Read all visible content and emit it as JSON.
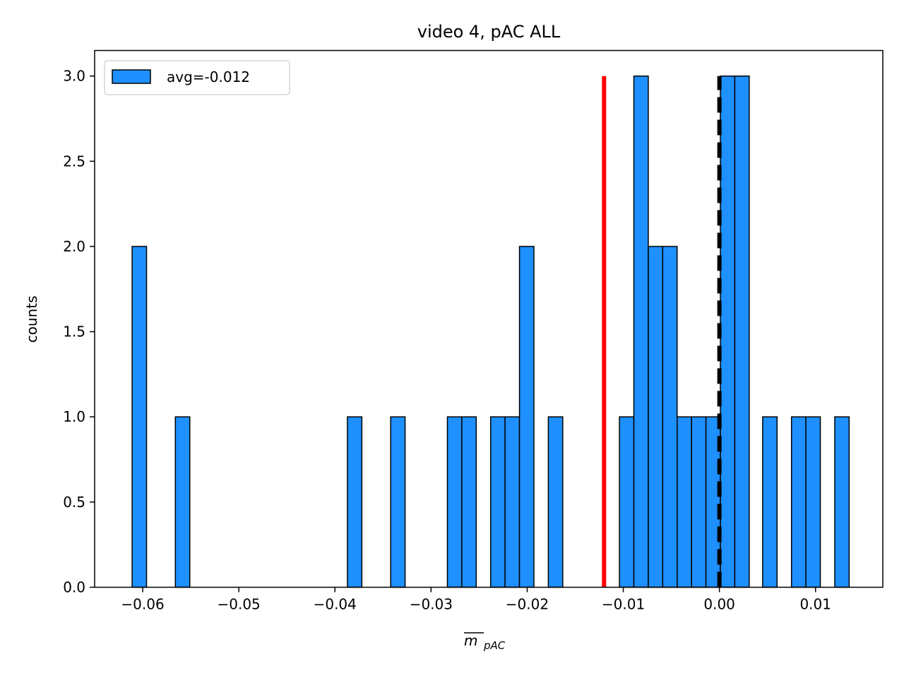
{
  "chart_data": {
    "type": "bar",
    "title": "video 4, pAC ALL",
    "xlabel_main": "m",
    "xlabel_sub": "pAC",
    "ylabel": "counts",
    "xlim": [
      -0.065,
      0.017
    ],
    "ylim": [
      0,
      3.15
    ],
    "bin_width": 0.0015,
    "xticks": [
      -0.06,
      -0.05,
      -0.04,
      -0.03,
      -0.02,
      -0.01,
      0.0,
      0.01
    ],
    "xtick_labels": [
      "−0.06",
      "−0.05",
      "−0.04",
      "−0.03",
      "−0.02",
      "−0.01",
      "0.00",
      "0.01"
    ],
    "yticks": [
      0.0,
      0.5,
      1.0,
      1.5,
      2.0,
      2.5,
      3.0
    ],
    "ytick_labels": [
      "0.0",
      "0.5",
      "1.0",
      "1.5",
      "2.0",
      "2.5",
      "3.0"
    ],
    "bins": [
      {
        "x0": -0.0611,
        "count": 2
      },
      {
        "x0": -0.0566,
        "count": 1
      },
      {
        "x0": -0.0387,
        "count": 1
      },
      {
        "x0": -0.0342,
        "count": 1
      },
      {
        "x0": -0.0283,
        "count": 1
      },
      {
        "x0": -0.0268,
        "count": 1
      },
      {
        "x0": -0.0238,
        "count": 1
      },
      {
        "x0": -0.0223,
        "count": 1
      },
      {
        "x0": -0.0208,
        "count": 2
      },
      {
        "x0": -0.0178,
        "count": 1
      },
      {
        "x0": -0.0104,
        "count": 1
      },
      {
        "x0": -0.0089,
        "count": 3
      },
      {
        "x0": -0.0074,
        "count": 2
      },
      {
        "x0": -0.0059,
        "count": 2
      },
      {
        "x0": -0.0044,
        "count": 1
      },
      {
        "x0": -0.0029,
        "count": 1
      },
      {
        "x0": -0.0014,
        "count": 1
      },
      {
        "x0": 0.0001,
        "count": 3
      },
      {
        "x0": 0.0016,
        "count": 3
      },
      {
        "x0": 0.0045,
        "count": 1
      },
      {
        "x0": 0.0075,
        "count": 1
      },
      {
        "x0": 0.009,
        "count": 1
      },
      {
        "x0": 0.012,
        "count": 1
      }
    ],
    "bar_color": "#1e90ff",
    "bar_edge_color": "#000000",
    "avg_line": {
      "x": -0.012,
      "y_top": 3.0,
      "color": "#ff0000"
    },
    "zero_line": {
      "x": 0.0,
      "y_top": 3.0,
      "color": "#000000"
    },
    "legend": {
      "label": "avg=-0.012",
      "placement": "top-left"
    }
  }
}
